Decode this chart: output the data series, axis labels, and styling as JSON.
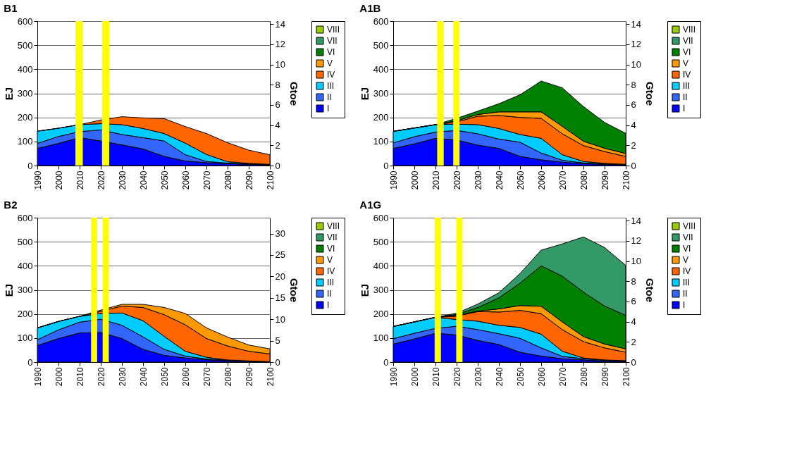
{
  "chart_data": [
    {
      "type": "area",
      "title": "B1",
      "ylabel": "EJ",
      "y2label": "Gtoe",
      "stacked": true,
      "legend": "right",
      "grid": "y",
      "x": [
        1990,
        2000,
        2010,
        2020,
        2030,
        2040,
        2050,
        2060,
        2070,
        2080,
        2090,
        2100
      ],
      "xlim": [
        1990,
        2100
      ],
      "xticks": [
        1990,
        2000,
        2010,
        2020,
        2030,
        2040,
        2050,
        2060,
        2070,
        2080,
        2090,
        2100
      ],
      "ylim": [
        0,
        600
      ],
      "yticks": [
        0,
        100,
        200,
        300,
        400,
        500,
        600
      ],
      "y2lim": [
        0,
        14.3
      ],
      "y2ticks": [
        0,
        2,
        4,
        6,
        8,
        10,
        12,
        14
      ],
      "bands": [
        {
          "axis": "x",
          "from": 2008,
          "to": 2011.5,
          "color": "#ffff00"
        },
        {
          "axis": "x",
          "from": 2020.6,
          "to": 2024,
          "color": "#ffff00"
        }
      ],
      "series": [
        {
          "name": "I",
          "color": "#0000ff",
          "values": [
            71,
            92,
            116,
            102,
            86,
            69,
            38,
            19,
            12,
            8,
            5,
            3
          ]
        },
        {
          "name": "II",
          "color": "#3366ff",
          "values": [
            21,
            29,
            25,
            46,
            43,
            47,
            64,
            26,
            5,
            2,
            2,
            2
          ]
        },
        {
          "name": "III",
          "color": "#00ccff",
          "values": [
            51,
            34,
            29,
            26,
            41,
            38,
            31,
            48,
            29,
            6,
            2,
            0
          ]
        },
        {
          "name": "IV",
          "color": "#ff6600",
          "values": [
            0,
            0,
            0,
            15,
            33,
            44,
            62,
            69,
            87,
            79,
            55,
            40
          ]
        },
        {
          "name": "V",
          "color": "#ff9900",
          "values": [
            null,
            null,
            null,
            null,
            null,
            null,
            null,
            null,
            null,
            null,
            null,
            null
          ]
        },
        {
          "name": "VI",
          "color": "#008000",
          "values": [
            null,
            null,
            null,
            null,
            null,
            null,
            null,
            null,
            null,
            null,
            null,
            null
          ]
        },
        {
          "name": "VII",
          "color": "#339966",
          "values": [
            null,
            null,
            null,
            null,
            null,
            null,
            null,
            null,
            null,
            null,
            null,
            null
          ]
        },
        {
          "name": "VIII",
          "color": "#99cc00",
          "values": [
            null,
            null,
            null,
            null,
            null,
            null,
            null,
            null,
            null,
            null,
            null,
            null
          ]
        }
      ]
    },
    {
      "type": "area",
      "title": "A1B",
      "ylabel": "EJ",
      "y2label": "Gtoe",
      "stacked": true,
      "legend": "right",
      "grid": "y",
      "x": [
        1990,
        2000,
        2010,
        2020,
        2030,
        2040,
        2050,
        2060,
        2070,
        2080,
        2090,
        2100
      ],
      "xlim": [
        1990,
        2100
      ],
      "xticks": [
        1990,
        2000,
        2010,
        2020,
        2030,
        2040,
        2050,
        2060,
        2070,
        2080,
        2090,
        2100
      ],
      "ylim": [
        0,
        600
      ],
      "yticks": [
        0,
        100,
        200,
        300,
        400,
        500,
        600
      ],
      "y2lim": [
        0,
        14.3
      ],
      "y2ticks": [
        0,
        2,
        4,
        6,
        8,
        10,
        12,
        14
      ],
      "bands": [
        {
          "axis": "x",
          "from": 2010.8,
          "to": 2013.9,
          "color": "#ffff00"
        },
        {
          "axis": "x",
          "from": 2018.4,
          "to": 2021.4,
          "color": "#ffff00"
        }
      ],
      "series": [
        {
          "name": "I",
          "color": "#0000ff",
          "values": [
            71,
            90,
            113,
            106,
            85,
            71,
            38,
            24,
            14,
            8,
            5,
            3
          ]
        },
        {
          "name": "II",
          "color": "#3366ff",
          "values": [
            23,
            30,
            26,
            40,
            47,
            39,
            59,
            28,
            8,
            3,
            2,
            1
          ]
        },
        {
          "name": "III",
          "color": "#00ccff",
          "values": [
            48,
            36,
            31,
            26,
            38,
            44,
            32,
            61,
            23,
            6,
            2,
            1
          ]
        },
        {
          "name": "IV",
          "color": "#ff6600",
          "values": [
            0,
            0,
            0,
            9,
            35,
            54,
            71,
            83,
            87,
            66,
            49,
            33
          ]
        },
        {
          "name": "V",
          "color": "#ff9900",
          "values": [
            0,
            0,
            0,
            5,
            7,
            15,
            23,
            27,
            31,
            18,
            14,
            12
          ]
        },
        {
          "name": "VI",
          "color": "#008000",
          "values": [
            0,
            0,
            0,
            10,
            14,
            34,
            71,
            128,
            160,
            144,
            107,
            84
          ]
        },
        {
          "name": "VII",
          "color": "#339966",
          "values": [
            null,
            null,
            null,
            null,
            null,
            null,
            null,
            null,
            null,
            null,
            null,
            null
          ]
        },
        {
          "name": "VIII",
          "color": "#99cc00",
          "values": [
            null,
            null,
            null,
            null,
            null,
            null,
            null,
            null,
            null,
            null,
            null,
            null
          ]
        }
      ]
    },
    {
      "type": "area",
      "title": "B2",
      "ylabel": "EJ",
      "y2label": "Gtoe",
      "stacked": true,
      "legend": "right",
      "grid": "y",
      "x": [
        1990,
        2000,
        2010,
        2020,
        2030,
        2040,
        2050,
        2060,
        2070,
        2080,
        2090,
        2100
      ],
      "xlim": [
        1990,
        2100
      ],
      "xticks": [
        1990,
        2000,
        2010,
        2020,
        2030,
        2040,
        2050,
        2060,
        2070,
        2080,
        2090,
        2100
      ],
      "ylim": [
        0,
        600
      ],
      "yticks": [
        0,
        100,
        200,
        300,
        400,
        500,
        600
      ],
      "y2lim": [
        0,
        33.7
      ],
      "y2ticks": [
        0,
        5,
        10,
        15,
        20,
        25,
        30
      ],
      "bands": [
        {
          "axis": "x",
          "from": 2015.4,
          "to": 2018.3,
          "color": "#ffff00"
        },
        {
          "axis": "x",
          "from": 2020.9,
          "to": 2023.8,
          "color": "#ffff00"
        }
      ],
      "series": [
        {
          "name": "I",
          "color": "#0000ff",
          "values": [
            69,
            98,
            121,
            123,
            98,
            53,
            28,
            17,
            10,
            6,
            3,
            2
          ]
        },
        {
          "name": "II",
          "color": "#3366ff",
          "values": [
            24,
            36,
            45,
            55,
            55,
            52,
            25,
            8,
            3,
            2,
            1,
            0
          ]
        },
        {
          "name": "III",
          "color": "#00ccff",
          "values": [
            49,
            35,
            24,
            24,
            51,
            67,
            54,
            20,
            7,
            1,
            1,
            0
          ]
        },
        {
          "name": "IV",
          "color": "#ff6600",
          "values": [
            0,
            0,
            0,
            9,
            29,
            55,
            90,
            110,
            78,
            58,
            40,
            32
          ]
        },
        {
          "name": "V",
          "color": "#ff9900",
          "values": [
            0,
            0,
            0,
            5,
            7,
            13,
            30,
            47,
            44,
            37,
            26,
            21
          ]
        },
        {
          "name": "VI",
          "color": "#008000",
          "values": [
            null,
            null,
            null,
            null,
            null,
            null,
            null,
            null,
            null,
            null,
            null,
            null
          ]
        },
        {
          "name": "VII",
          "color": "#339966",
          "values": [
            null,
            null,
            null,
            null,
            null,
            null,
            null,
            null,
            null,
            null,
            null,
            null
          ]
        },
        {
          "name": "VIII",
          "color": "#99cc00",
          "values": [
            null,
            null,
            null,
            null,
            null,
            null,
            null,
            null,
            null,
            null,
            null,
            null
          ]
        }
      ]
    },
    {
      "type": "area",
      "title": "A1G",
      "ylabel": "EJ",
      "y2label": "Gtoe",
      "stacked": true,
      "legend": "right",
      "grid": "y",
      "x": [
        1990,
        2000,
        2010,
        2020,
        2030,
        2040,
        2050,
        2060,
        2070,
        2080,
        2090,
        2100
      ],
      "xlim": [
        1990,
        2100
      ],
      "xticks": [
        1990,
        2000,
        2010,
        2020,
        2030,
        2040,
        2050,
        2060,
        2070,
        2080,
        2090,
        2100
      ],
      "ylim": [
        0,
        600
      ],
      "yticks": [
        0,
        100,
        200,
        300,
        400,
        500,
        600
      ],
      "y2lim": [
        0,
        14.3
      ],
      "y2ticks": [
        0,
        2,
        4,
        6,
        8,
        10,
        12,
        14
      ],
      "bands": [
        {
          "axis": "x",
          "from": 2009.6,
          "to": 2012.6,
          "color": "#ffff00"
        },
        {
          "axis": "x",
          "from": 2019.8,
          "to": 2022.8,
          "color": "#ffff00"
        }
      ],
      "series": [
        {
          "name": "I",
          "color": "#0000ff",
          "values": [
            75,
            96,
            120,
            113,
            90,
            73,
            41,
            25,
            14,
            9,
            5,
            3
          ]
        },
        {
          "name": "II",
          "color": "#3366ff",
          "values": [
            22,
            24,
            20,
            36,
            45,
            45,
            58,
            34,
            10,
            5,
            3,
            2
          ]
        },
        {
          "name": "III",
          "color": "#00ccff",
          "values": [
            51,
            47,
            46,
            28,
            35,
            35,
            45,
            57,
            21,
            3,
            1,
            1
          ]
        },
        {
          "name": "IV",
          "color": "#ff6600",
          "values": [
            0,
            0,
            0,
            14,
            40,
            55,
            71,
            85,
            90,
            68,
            50,
            35
          ]
        },
        {
          "name": "V",
          "color": "#ff9900",
          "values": [
            0,
            0,
            0,
            3,
            2,
            13,
            20,
            31,
            32,
            21,
            16,
            14
          ]
        },
        {
          "name": "VI",
          "color": "#008000",
          "values": [
            0,
            0,
            0,
            4,
            15,
            46,
            93,
            168,
            190,
            185,
            158,
            139
          ]
        },
        {
          "name": "VII",
          "color": "#339966",
          "values": [
            0,
            0,
            0,
            5,
            14,
            21,
            40,
            65,
            134,
            229,
            243,
            208
          ]
        },
        {
          "name": "VIII",
          "color": "#99cc00",
          "values": [
            null,
            null,
            null,
            null,
            null,
            null,
            null,
            null,
            null,
            null,
            null,
            null
          ]
        }
      ]
    }
  ]
}
